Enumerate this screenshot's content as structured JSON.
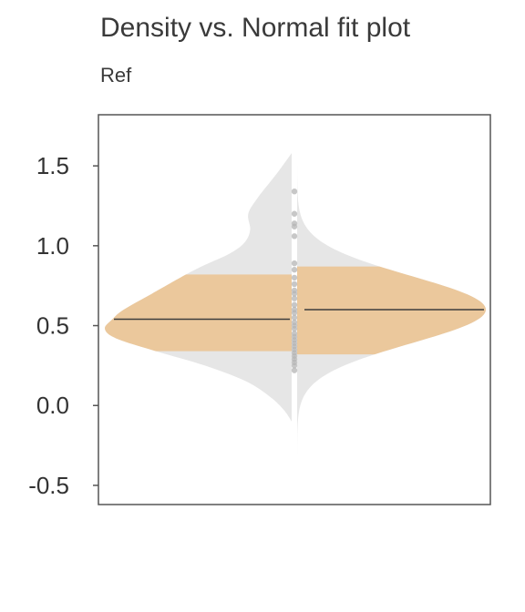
{
  "chart_data": {
    "type": "violin",
    "title": "Density vs. Normal fit plot",
    "subtitle": "Ref",
    "xlabel": "",
    "ylabel": "",
    "ylim": [
      -0.62,
      1.82
    ],
    "yticks": [
      -0.5,
      0.0,
      0.5,
      1.0,
      1.5
    ],
    "ytick_labels": [
      "-0.5",
      "0.0",
      "0.5",
      "1.0",
      "1.5"
    ],
    "grid": false,
    "legend": "none",
    "halves": [
      {
        "side": "left",
        "kind": "density",
        "mean": 0.54,
        "interval": [
          0.34,
          0.82
        ],
        "density_outline": [
          [
            1.58,
            0.0
          ],
          [
            1.45,
            0.08
          ],
          [
            1.3,
            0.18
          ],
          [
            1.2,
            0.23
          ],
          [
            1.1,
            0.22
          ],
          [
            1.02,
            0.25
          ],
          [
            0.95,
            0.33
          ],
          [
            0.88,
            0.46
          ],
          [
            0.82,
            0.56
          ],
          [
            0.7,
            0.74
          ],
          [
            0.6,
            0.89
          ],
          [
            0.54,
            0.95
          ],
          [
            0.48,
            0.99
          ],
          [
            0.42,
            0.93
          ],
          [
            0.34,
            0.72
          ],
          [
            0.25,
            0.46
          ],
          [
            0.15,
            0.24
          ],
          [
            0.05,
            0.11
          ],
          [
            -0.03,
            0.04
          ],
          [
            -0.1,
            0.0
          ]
        ]
      },
      {
        "side": "right",
        "kind": "normal-fit",
        "mean": 0.6,
        "sd": 0.21,
        "interval": [
          0.32,
          0.87
        ]
      }
    ],
    "points_y": [
      1.34,
      1.2,
      1.14,
      1.12,
      1.06,
      0.89,
      0.85,
      0.8,
      0.76,
      0.72,
      0.7,
      0.67,
      0.63,
      0.6,
      0.58,
      0.55,
      0.52,
      0.5,
      0.48,
      0.45,
      0.43,
      0.41,
      0.39,
      0.37,
      0.35,
      0.33,
      0.31,
      0.29,
      0.27,
      0.25,
      0.22
    ],
    "colors": {
      "density_fill": "#e6e6e6",
      "interval_fill": "#ebc89c",
      "mean_line": "#3c3c3c",
      "points": "#b4b4b4",
      "frame": "#555555"
    }
  }
}
